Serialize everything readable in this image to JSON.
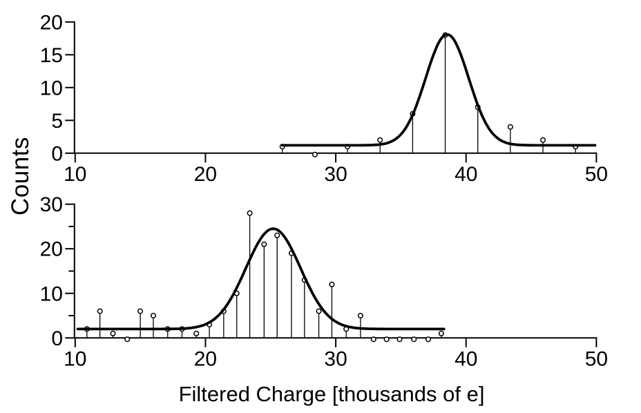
{
  "figure": {
    "background": "#ffffff",
    "line_color": "#000000",
    "marker_fill": "#ffffff",
    "x_axis_label": "Filtered Charge [thousands of e]",
    "y_axis_label": "Counts"
  },
  "chart_data": [
    {
      "type": "scatter",
      "subtype": "stem_histogram_with_gaussian_fit",
      "panel": "top",
      "title": "",
      "xlabel": "Filtered Charge [thousands of e]",
      "ylabel": "Counts",
      "xlim": [
        10,
        50
      ],
      "ylim": [
        0,
        20
      ],
      "x_ticks": [
        10,
        20,
        30,
        40,
        50
      ],
      "y_ticks": [
        0,
        5,
        10,
        15,
        20
      ],
      "y_minor_ticks": [],
      "grid": false,
      "legend": false,
      "x": [
        25.9,
        28.4,
        30.9,
        33.4,
        35.9,
        38.4,
        40.9,
        43.4,
        45.9,
        48.4
      ],
      "counts": [
        1,
        0,
        1,
        2,
        6,
        18,
        7,
        4,
        2,
        1
      ],
      "fit": {
        "shape": "gaussian_plus_constant",
        "baseline": 1.2,
        "amplitude": 16.9,
        "mean": 38.55,
        "sigma": 1.65,
        "x_range": [
          25.9,
          49.95
        ]
      }
    },
    {
      "type": "scatter",
      "subtype": "stem_histogram_with_gaussian_fit",
      "panel": "bottom",
      "title": "",
      "xlabel": "Filtered Charge [thousands of e]",
      "ylabel": "Counts",
      "xlim": [
        10,
        50
      ],
      "ylim": [
        0,
        30
      ],
      "x_ticks": [
        10,
        20,
        30,
        40,
        50
      ],
      "y_ticks": [
        0,
        10,
        20,
        30
      ],
      "y_minor_ticks": [
        5,
        15,
        25
      ],
      "grid": false,
      "legend": false,
      "x": [
        10.9,
        11.9,
        12.9,
        14.0,
        15.0,
        16.0,
        17.1,
        18.2,
        19.3,
        20.3,
        21.4,
        22.4,
        23.4,
        24.5,
        25.5,
        26.6,
        27.6,
        28.7,
        29.7,
        30.8,
        31.9,
        32.9,
        33.9,
        34.9,
        36.0,
        37.1,
        38.1
      ],
      "counts": [
        2,
        6,
        1,
        0,
        6,
        5,
        2,
        2,
        1,
        3,
        6,
        10,
        28,
        21,
        23,
        19,
        13,
        6,
        12,
        2,
        5,
        0,
        0,
        0,
        0,
        0,
        1
      ],
      "fit": {
        "shape": "gaussian_plus_constant",
        "baseline": 2.0,
        "amplitude": 22.5,
        "mean": 25.2,
        "sigma": 2.1,
        "x_range": [
          10.2,
          38.3
        ]
      }
    }
  ]
}
